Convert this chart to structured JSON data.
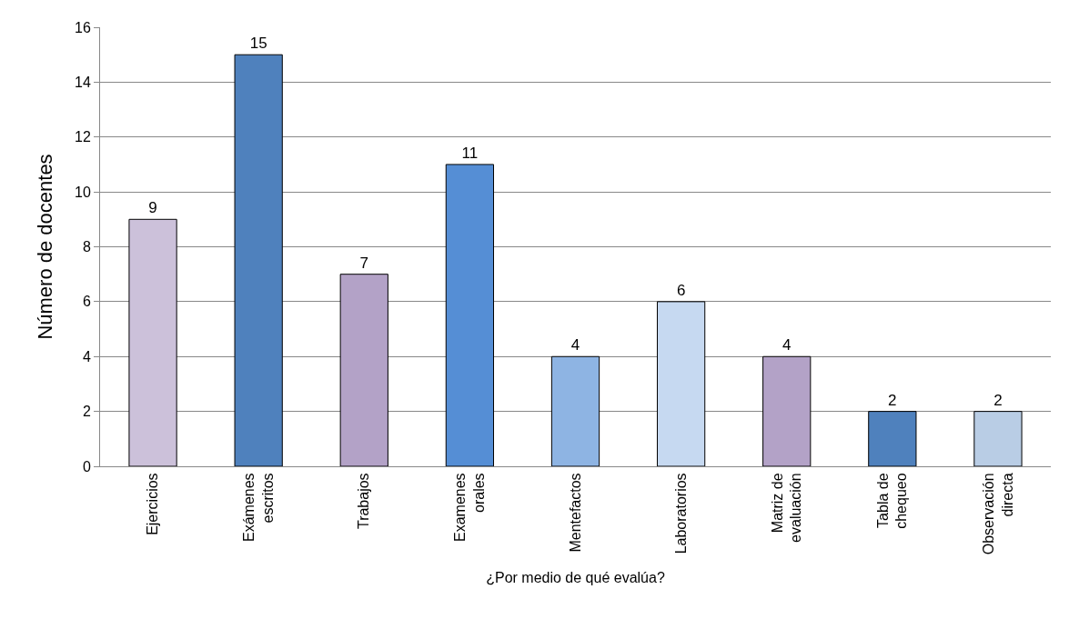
{
  "chart_data": {
    "type": "bar",
    "xlabel": "¿Por medio de qué evalúa?",
    "ylabel": "Número de docentes",
    "categories": [
      "Ejercicios",
      "Exámenes escritos",
      "Trabajos",
      "Examenes orales",
      "Mentefactos",
      "Laboratorios",
      "Matriz de evaluación",
      "Tabla de chequeo",
      "Observación directa"
    ],
    "values": [
      9,
      15,
      7,
      11,
      4,
      6,
      4,
      2,
      2
    ],
    "colors": [
      "#ccc1da",
      "#4f81bd",
      "#b3a2c7",
      "#558ed5",
      "#8eb4e3",
      "#c6d9f1",
      "#b3a2c7",
      "#4f81bd",
      "#b9cde5"
    ],
    "ylim": [
      0,
      16
    ],
    "yticks": [
      0,
      2,
      4,
      6,
      8,
      10,
      12,
      14,
      16
    ],
    "grid": "y",
    "data_labels": true
  }
}
